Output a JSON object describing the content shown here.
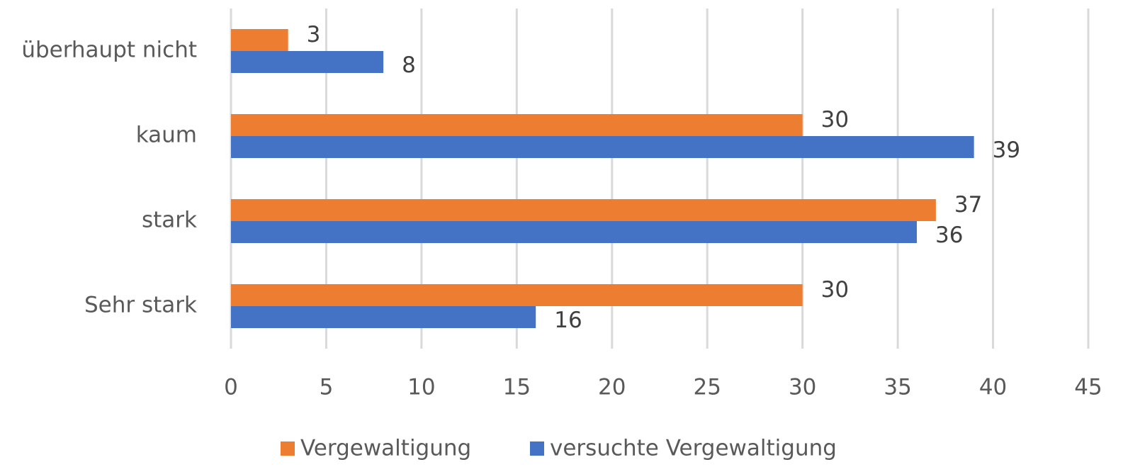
{
  "chart_data": {
    "type": "hbar",
    "categories": [
      "überhaupt nicht",
      "kaum",
      "stark",
      "Sehr stark"
    ],
    "series": [
      {
        "name": "Vergewaltigung",
        "color": "#ed7d31",
        "values": [
          3,
          30,
          37,
          30
        ]
      },
      {
        "name": "versuchte Vergewaltigung",
        "color": "#4472c4",
        "values": [
          8,
          39,
          36,
          16
        ]
      }
    ],
    "xlim": [
      0,
      45
    ],
    "xticks": [
      0,
      5,
      10,
      15,
      20,
      25,
      30,
      35,
      40,
      45
    ],
    "grid": true,
    "legend": "bottom"
  }
}
